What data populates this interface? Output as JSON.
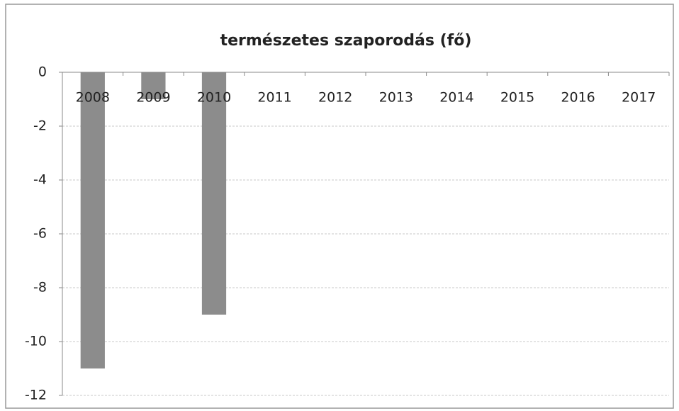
{
  "chart_data": {
    "type": "bar",
    "title": "természetes szaporodás (fő)",
    "categories": [
      "2008",
      "2009",
      "2010",
      "2011",
      "2012",
      "2013",
      "2014",
      "2015",
      "2016",
      "2017"
    ],
    "values": [
      -11,
      -1,
      -9,
      0,
      0,
      0,
      0,
      0,
      0,
      0
    ],
    "color": "#8c8c8c",
    "ylim": [
      -12,
      0
    ],
    "yticks": [
      0,
      -2,
      -4,
      -6,
      -8,
      -10,
      -12
    ],
    "grid": true
  }
}
